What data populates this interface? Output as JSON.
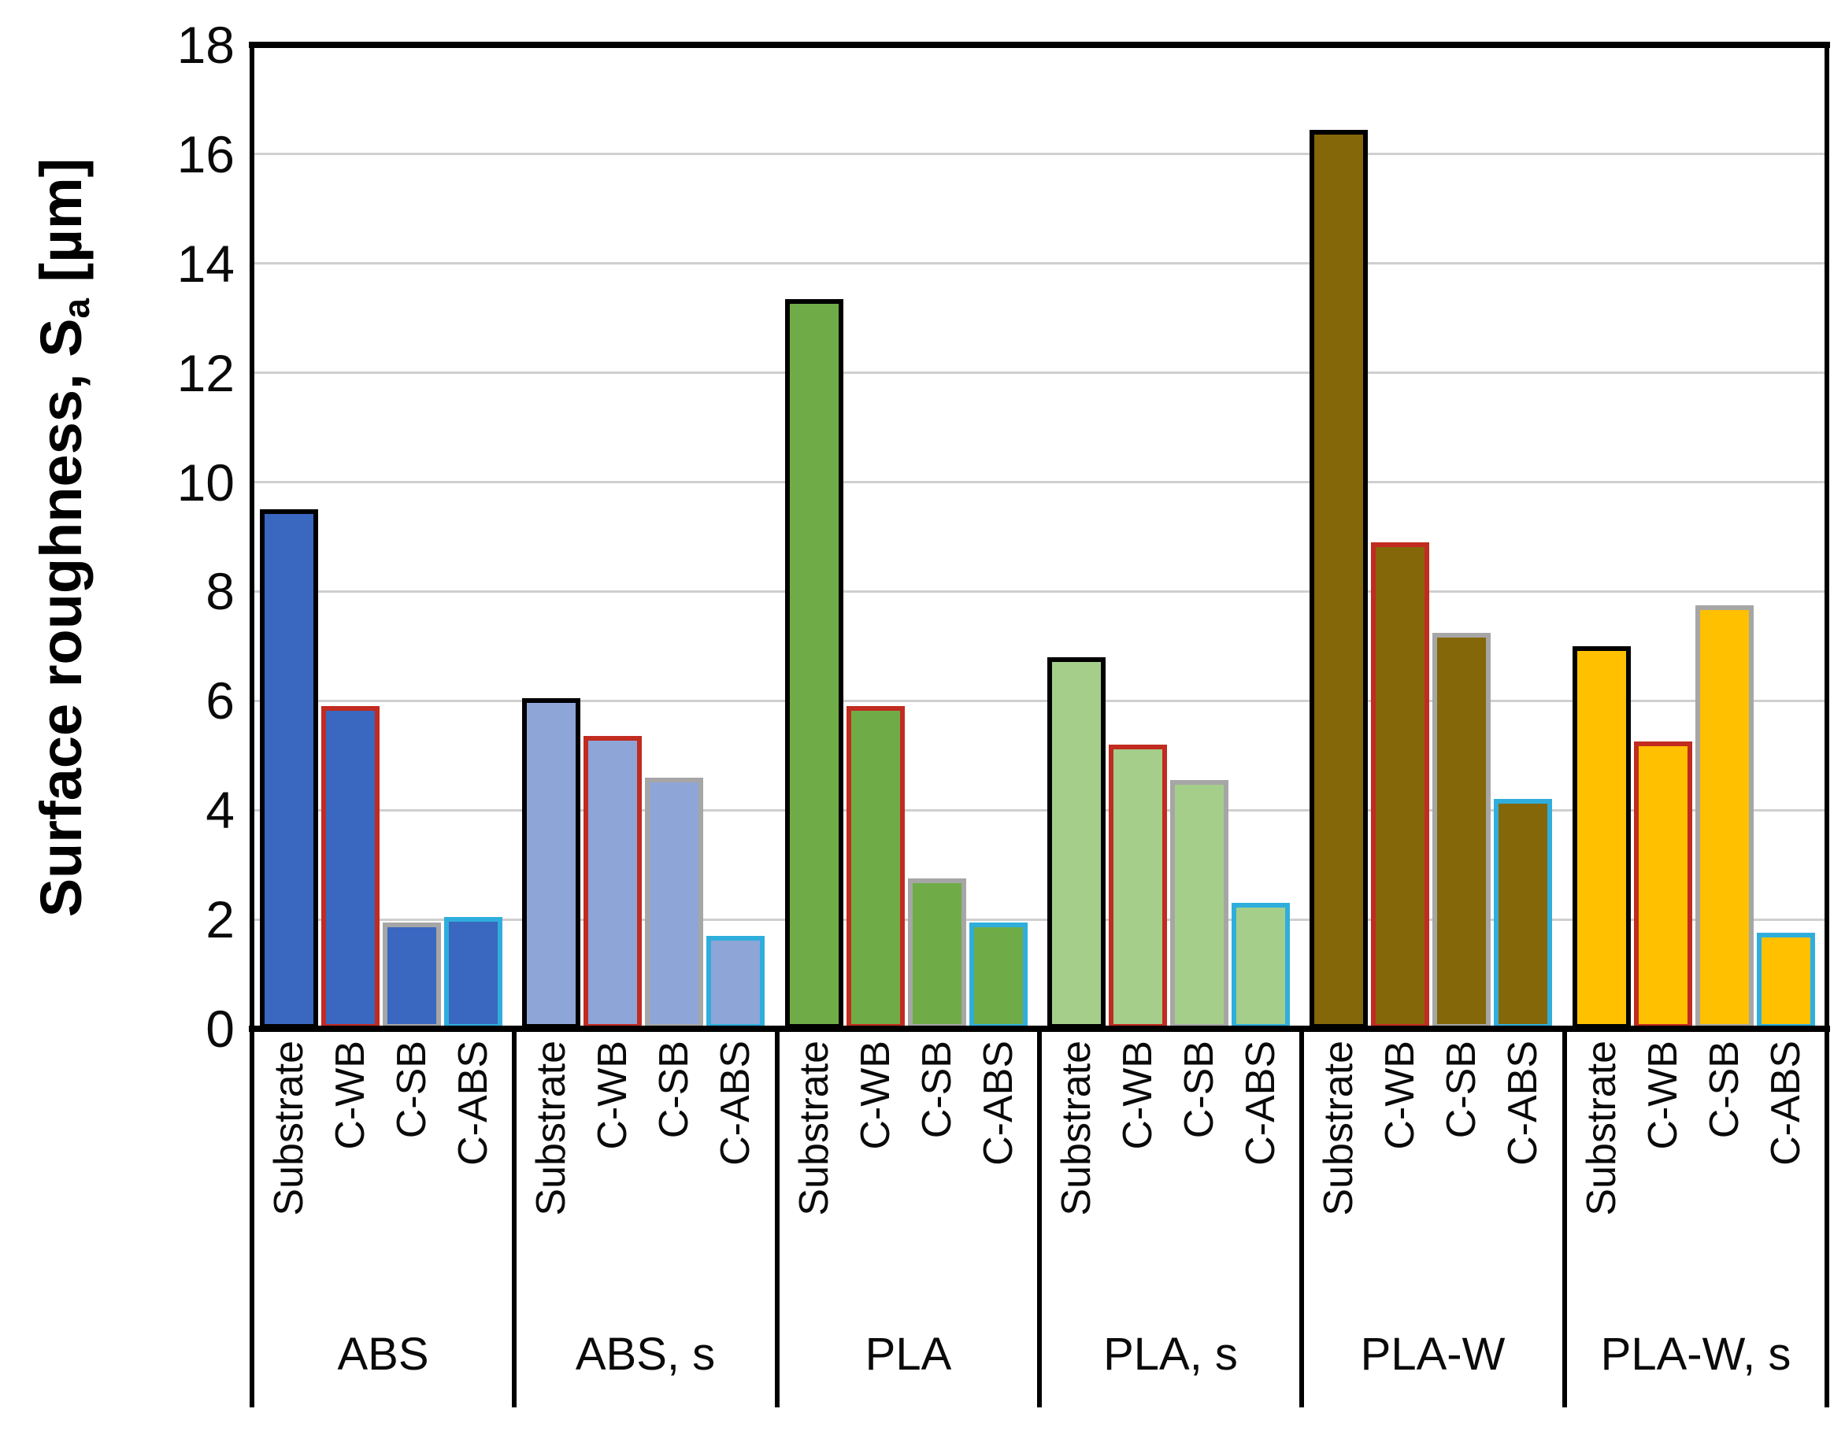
{
  "chart_data": {
    "type": "bar",
    "title": "",
    "ylabel": {
      "prefix": "Surface roughness, S",
      "subscript": "a",
      "suffix": " [µm]"
    },
    "xlabel": "",
    "ylim": [
      0,
      18
    ],
    "yticks": [
      0,
      2,
      4,
      6,
      8,
      10,
      12,
      14,
      16,
      18
    ],
    "grid": true,
    "legend": "none",
    "treatments": [
      "Substrate",
      "C-WB",
      "C-SB",
      "C-ABS"
    ],
    "outline_colors": {
      "Substrate": "#000000",
      "C-WB": "#C12B20",
      "C-SB": "#A6A6A6",
      "C-ABS": "#2FAEDC"
    },
    "groups": [
      {
        "label": "ABS",
        "fill": "#3A67C0",
        "values": [
          9.5,
          5.9,
          1.95,
          2.05
        ]
      },
      {
        "label": "ABS, s",
        "fill": "#8EA5D8",
        "values": [
          6.05,
          5.35,
          4.6,
          1.7
        ]
      },
      {
        "label": "PLA",
        "fill": "#6FAC47",
        "values": [
          13.35,
          5.9,
          2.75,
          1.95
        ]
      },
      {
        "label": "PLA, s",
        "fill": "#A5CE8B",
        "values": [
          6.8,
          5.2,
          4.55,
          2.3
        ]
      },
      {
        "label": "PLA-W",
        "fill": "#846709",
        "values": [
          16.45,
          8.9,
          7.25,
          4.2
        ]
      },
      {
        "label": "PLA-W, s",
        "fill": "#FFC000",
        "values": [
          7.0,
          5.25,
          7.75,
          1.75
        ]
      }
    ],
    "axis_color": "#000000",
    "gridline_color": "#cfcfcf"
  }
}
